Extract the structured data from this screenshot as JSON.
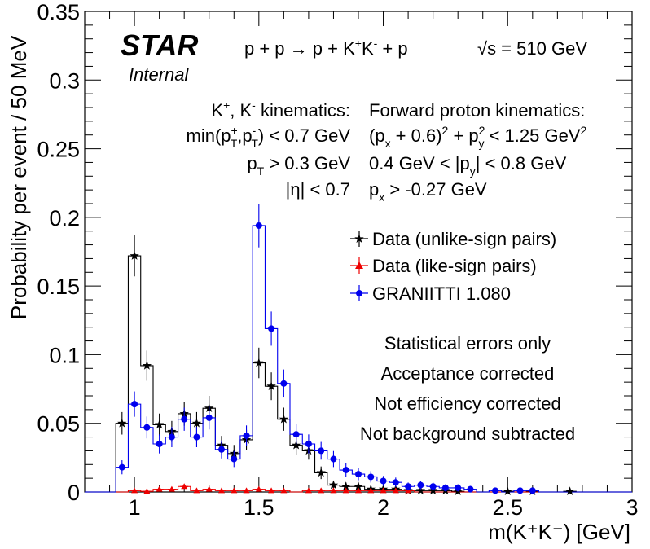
{
  "chart_data": {
    "type": "scatter",
    "title": "",
    "xlabel": "m(K⁺K⁻) [GeV]",
    "ylabel": "Probability per event / 50 MeV",
    "xlim": [
      0.8,
      3.0
    ],
    "ylim": [
      0,
      0.35
    ],
    "xticks": [
      "1",
      "1.5",
      "2",
      "2.5",
      "3"
    ],
    "yticks": [
      "0",
      "0.05",
      "0.1",
      "0.15",
      "0.2",
      "0.25",
      "0.3",
      "0.35"
    ],
    "grid": false,
    "legend_position": "middle-right",
    "series": [
      {
        "name": "Data (unlike-sign pairs)",
        "color": "#000000",
        "marker": "star",
        "x": [
          0.95,
          1.0,
          1.05,
          1.1,
          1.15,
          1.2,
          1.25,
          1.3,
          1.35,
          1.4,
          1.45,
          1.5,
          1.55,
          1.6,
          1.65,
          1.7,
          1.75,
          1.8,
          1.85,
          1.9,
          1.95,
          2.0,
          2.05,
          2.1,
          2.15,
          2.2,
          2.25,
          2.3,
          2.5,
          2.6,
          2.75
        ],
        "y": [
          0.05,
          0.172,
          0.092,
          0.049,
          0.044,
          0.057,
          0.05,
          0.061,
          0.034,
          0.028,
          0.038,
          0.094,
          0.077,
          0.053,
          0.034,
          0.03,
          0.014,
          0.005,
          0.004,
          0.004,
          0.002,
          0.002,
          0.002,
          0.001,
          0.001,
          0.001,
          0.001,
          0.0005,
          0.0005,
          0.0005,
          0.0005
        ]
      },
      {
        "name": "Data (like-sign pairs)",
        "color": "#ee0000",
        "marker": "triangle",
        "x": [
          1.0,
          1.05,
          1.1,
          1.15,
          1.2,
          1.25,
          1.3,
          1.35,
          1.4,
          1.45,
          1.5,
          1.55,
          1.6,
          1.7,
          1.75,
          1.8,
          1.85,
          1.9,
          1.95,
          2.0,
          2.05,
          2.1
        ],
        "y": [
          0.001,
          0.0005,
          0.002,
          0.002,
          0.004,
          0.001,
          0.002,
          0.001,
          0.001,
          0.001,
          0.002,
          0.001,
          0.001,
          0.001,
          0.001,
          0.001,
          0.001,
          0.001,
          0.001,
          0.001,
          0.001,
          0.001
        ]
      },
      {
        "name": "GRANIITTI 1.080",
        "color": "#0000ee",
        "marker": "circle",
        "x": [
          0.95,
          1.0,
          1.05,
          1.1,
          1.15,
          1.2,
          1.25,
          1.3,
          1.35,
          1.4,
          1.45,
          1.5,
          1.55,
          1.6,
          1.65,
          1.7,
          1.75,
          1.8,
          1.85,
          1.9,
          1.95,
          2.0,
          2.05,
          2.1,
          2.15,
          2.2,
          2.25,
          2.3,
          2.35,
          2.45,
          2.55,
          2.6
        ],
        "y": [
          0.018,
          0.064,
          0.047,
          0.035,
          0.04,
          0.053,
          0.04,
          0.054,
          0.031,
          0.024,
          0.041,
          0.194,
          0.119,
          0.079,
          0.042,
          0.035,
          0.03,
          0.024,
          0.016,
          0.013,
          0.011,
          0.008,
          0.007,
          0.004,
          0.005,
          0.004,
          0.003,
          0.003,
          0.002,
          0.001,
          0.001,
          0.001
        ]
      }
    ],
    "annotations": {
      "star_logo": "STAR",
      "internal_label": "Internal",
      "reaction_parts": [
        "p + p ",
        "→",
        " p + K",
        "+",
        "K",
        "-",
        " + p"
      ],
      "sqrt_s": "√s = 510 GeV",
      "kaon_header": [
        "K",
        "+",
        ", K",
        "-",
        " kinematics:"
      ],
      "kaon_cut1": [
        "min(p",
        "+",
        "T",
        ",p",
        "-",
        "T",
        ") < 0.7 GeV"
      ],
      "kaon_cut2": [
        "p",
        "T",
        " > 0.3 GeV"
      ],
      "kaon_cut3": "|η| < 0.7",
      "proton_header": "Forward proton kinematics:",
      "proton_cut1": [
        "(p",
        "x",
        " + 0.6)",
        "2",
        " + p",
        "2",
        "y",
        " < 1.25 GeV",
        "2"
      ],
      "proton_cut2": [
        "0.4 GeV < |p",
        "y",
        "| < 0.8 GeV"
      ],
      "proton_cut3": [
        "p",
        "x",
        " > -0.27 GeV"
      ],
      "notes": [
        "Statistical errors only",
        "Acceptance corrected",
        "Not efficiency corrected",
        "Not background subtracted"
      ]
    }
  }
}
